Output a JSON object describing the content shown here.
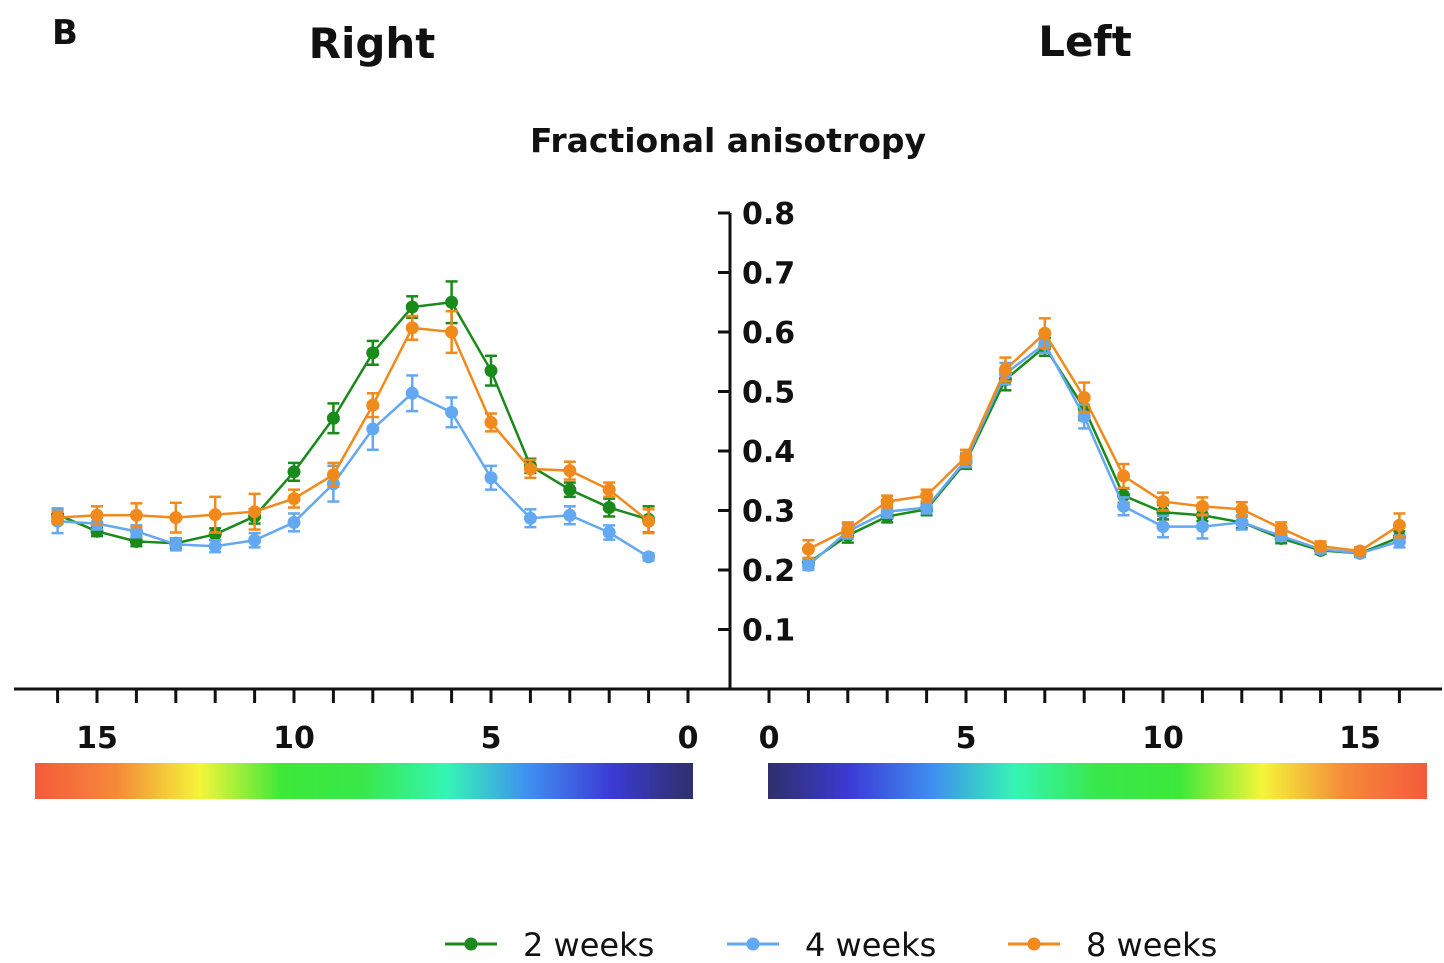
{
  "panel_label": "B",
  "side_titles": {
    "right": "Right",
    "left": "Left"
  },
  "chart_data": {
    "type": "line",
    "title": "Fractional anisotropy",
    "ylim": [
      0,
      0.8
    ],
    "yticks": [
      "0.1",
      "0.2",
      "0.3",
      "0.4",
      "0.5",
      "0.6",
      "0.7",
      "0.8"
    ],
    "xlim": [
      0,
      17
    ],
    "xtick_labels": [
      "0",
      "5",
      "10",
      "15"
    ],
    "grid": false,
    "legend_position": "bottom",
    "colorbar_stops": [
      "#2f2f6b",
      "#3b3bd6",
      "#3f8ff0",
      "#35f5b5",
      "#38e84a",
      "#3ee83a",
      "#f5f53a",
      "#f58a3a",
      "#f55a3a"
    ],
    "panels": [
      {
        "side": "Right",
        "x": [
          1,
          2,
          3,
          4,
          5,
          6,
          7,
          8,
          9,
          10,
          11,
          12,
          13,
          14,
          15,
          16
        ],
        "series": [
          {
            "name": "2 weeks",
            "color": "#1a8a1a",
            "values": [
              0.285,
              0.305,
              0.335,
              0.375,
              0.535,
              0.65,
              0.642,
              0.565,
              0.455,
              0.365,
              0.29,
              0.26,
              0.245,
              0.248,
              0.265,
              0.293
            ],
            "errors": [
              0.022,
              0.015,
              0.012,
              0.012,
              0.025,
              0.035,
              0.018,
              0.02,
              0.025,
              0.015,
              0.012,
              0.01,
              0.008,
              0.008,
              0.008,
              0.01
            ]
          },
          {
            "name": "4 weeks",
            "color": "#63a8f0",
            "values": [
              0.222,
              0.263,
              0.292,
              0.287,
              0.355,
              0.465,
              0.497,
              0.437,
              0.345,
              0.28,
              0.25,
              0.24,
              0.243,
              0.265,
              0.278,
              0.282
            ],
            "errors": [
              0.006,
              0.012,
              0.015,
              0.015,
              0.02,
              0.025,
              0.03,
              0.035,
              0.03,
              0.015,
              0.012,
              0.01,
              0.01,
              0.01,
              0.01,
              0.02
            ]
          },
          {
            "name": "8 weeks",
            "color": "#f08a1c",
            "values": [
              0.282,
              0.335,
              0.367,
              0.37,
              0.448,
              0.6,
              0.607,
              0.477,
              0.36,
              0.32,
              0.298,
              0.293,
              0.288,
              0.292,
              0.292,
              0.288
            ],
            "errors": [
              0.02,
              0.012,
              0.015,
              0.015,
              0.015,
              0.035,
              0.02,
              0.02,
              0.02,
              0.015,
              0.03,
              0.03,
              0.025,
              0.02,
              0.015,
              0.01
            ]
          }
        ]
      },
      {
        "side": "Left",
        "x": [
          1,
          2,
          3,
          4,
          5,
          6,
          7,
          8,
          9,
          10,
          11,
          12,
          13,
          14,
          15,
          16
        ],
        "series": [
          {
            "name": "2 weeks",
            "color": "#1a8a1a",
            "values": [
              0.212,
              0.258,
              0.29,
              0.302,
              0.382,
              0.52,
              0.575,
              0.472,
              0.325,
              0.297,
              0.292,
              0.28,
              0.253,
              0.233,
              0.228,
              0.255
            ],
            "errors": [
              0.008,
              0.012,
              0.01,
              0.01,
              0.012,
              0.018,
              0.015,
              0.02,
              0.012,
              0.012,
              0.01,
              0.01,
              0.008,
              0.006,
              0.006,
              0.01
            ]
          },
          {
            "name": "4 weeks",
            "color": "#63a8f0",
            "values": [
              0.208,
              0.265,
              0.298,
              0.305,
              0.385,
              0.53,
              0.58,
              0.458,
              0.307,
              0.273,
              0.273,
              0.28,
              0.257,
              0.235,
              0.228,
              0.248
            ],
            "errors": [
              0.008,
              0.012,
              0.01,
              0.01,
              0.012,
              0.018,
              0.015,
              0.02,
              0.015,
              0.018,
              0.02,
              0.012,
              0.008,
              0.006,
              0.006,
              0.01
            ]
          },
          {
            "name": "8 weeks",
            "color": "#f08a1c",
            "values": [
              0.235,
              0.268,
              0.315,
              0.325,
              0.39,
              0.537,
              0.598,
              0.49,
              0.358,
              0.315,
              0.307,
              0.302,
              0.27,
              0.24,
              0.232,
              0.275
            ],
            "errors": [
              0.015,
              0.012,
              0.01,
              0.01,
              0.012,
              0.02,
              0.025,
              0.025,
              0.02,
              0.015,
              0.015,
              0.012,
              0.01,
              0.008,
              0.006,
              0.02
            ]
          }
        ]
      }
    ],
    "legend": [
      {
        "label": "2 weeks",
        "color": "#1a8a1a"
      },
      {
        "label": "4 weeks",
        "color": "#63a8f0"
      },
      {
        "label": "8 weeks",
        "color": "#f08a1c"
      }
    ]
  }
}
